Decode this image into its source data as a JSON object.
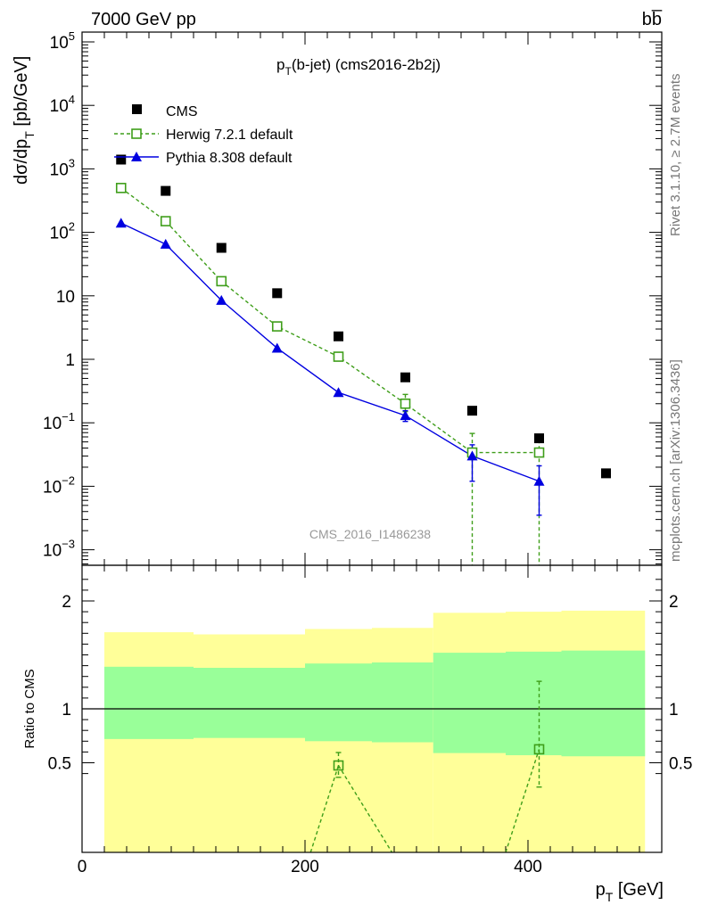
{
  "header": {
    "left": "7000 GeV pp",
    "right": "bb̅"
  },
  "side_text": {
    "rivet": "Rivet 3.1.10, ≥ 2.7M events",
    "mcplots": "mcplots.cern.ch [arXiv:1306.3436]"
  },
  "watermark": "CMS_2016_I1486238",
  "colors": {
    "cms": "#000000",
    "herwig": "#3f9e1a",
    "pythia": "#0000e0",
    "band_green": "#99ff99",
    "band_yellow": "#ffff99"
  },
  "chart_data": [
    {
      "type": "scatter",
      "title": "p_T(b-jet) (cms2016-2b2j)",
      "title_main": "p",
      "title_sub": "T",
      "title_rest": "(b-jet) (cms2016-2b2j)",
      "ylabel": "dσ/dp_T [pb/GeV]",
      "ylabel_main": "dσ/dp",
      "ylabel_sub": "T",
      "ylabel_rest": " [pb/GeV]",
      "yscale": "log",
      "ylim": [
        0.0005,
        150000
      ],
      "xlim": [
        0,
        520
      ],
      "ytick_labels": [
        {
          "v": 0.001,
          "base": "10",
          "exp": "−3"
        },
        {
          "v": 0.01,
          "base": "10",
          "exp": "−2"
        },
        {
          "v": 0.1,
          "base": "10",
          "exp": "−1"
        },
        {
          "v": 1,
          "base": "1",
          "exp": ""
        },
        {
          "v": 10,
          "base": "10",
          "exp": ""
        },
        {
          "v": 100,
          "base": "10",
          "exp": "2"
        },
        {
          "v": 1000,
          "base": "10",
          "exp": "3"
        },
        {
          "v": 10000,
          "base": "10",
          "exp": "4"
        },
        {
          "v": 100000,
          "base": "10",
          "exp": "5"
        }
      ],
      "legend_position": "top-left",
      "series": [
        {
          "name": "CMS",
          "marker": "filled-square",
          "x": [
            35,
            75,
            125,
            175,
            230,
            290,
            350,
            410,
            470
          ],
          "y": [
            1400,
            450,
            57,
            11,
            2.3,
            0.52,
            0.155,
            0.057,
            0.016
          ]
        },
        {
          "name": "Herwig 7.2.1 default",
          "marker": "open-square",
          "line": "dashed",
          "x": [
            35,
            75,
            125,
            175,
            230,
            290,
            350,
            410
          ],
          "y": [
            500,
            150,
            17,
            3.3,
            1.1,
            0.2,
            0.034,
            0.034
          ],
          "err_low": [
            0,
            0,
            0,
            0,
            0,
            0.05,
            0.0335,
            0.0335
          ],
          "err_high": [
            0,
            0,
            0,
            0,
            0,
            0.08,
            0.034,
            0.02
          ]
        },
        {
          "name": "Pythia 8.308 default",
          "marker": "filled-triangle",
          "line": "solid",
          "x": [
            35,
            75,
            125,
            175,
            230,
            290,
            350,
            410
          ],
          "y": [
            140,
            65,
            8.5,
            1.5,
            0.3,
            0.13,
            0.03,
            0.012
          ],
          "err_low": [
            0,
            0,
            0,
            0,
            0,
            0.025,
            0.018,
            0.0085
          ],
          "err_high": [
            0,
            0,
            0,
            0,
            0,
            0.025,
            0.015,
            0.009
          ]
        }
      ]
    },
    {
      "type": "scatter",
      "ylabel": "Ratio to CMS",
      "xlabel": "p_T [GeV]",
      "xlabel_main": "p",
      "xlabel_sub": "T",
      "xlabel_rest": " [GeV]",
      "xlim": [
        0,
        520
      ],
      "ylim": [
        0.35,
        2.3
      ],
      "xticks": [
        0,
        200,
        400
      ],
      "yticks": [
        0.5,
        1,
        2
      ],
      "ytick_labels": [
        "0.5",
        "1",
        "2"
      ],
      "bands": [
        {
          "x0": 20,
          "x1": 100,
          "green": [
            0.72,
            1.39
          ],
          "yellow": [
            0.35,
            1.71
          ]
        },
        {
          "x0": 100,
          "x1": 200,
          "green": [
            0.73,
            1.38
          ],
          "yellow": [
            0.35,
            1.69
          ]
        },
        {
          "x0": 200,
          "x1": 260,
          "green": [
            0.7,
            1.42
          ],
          "yellow": [
            0.35,
            1.74
          ]
        },
        {
          "x0": 260,
          "x1": 315,
          "green": [
            0.69,
            1.43
          ],
          "yellow": [
            0.35,
            1.75
          ]
        },
        {
          "x0": 315,
          "x1": 380,
          "green": [
            0.59,
            1.52
          ],
          "yellow": [
            0.35,
            1.89
          ]
        },
        {
          "x0": 380,
          "x1": 430,
          "green": [
            0.57,
            1.53
          ],
          "yellow": [
            0.35,
            1.9
          ]
        },
        {
          "x0": 430,
          "x1": 505,
          "green": [
            0.56,
            1.54
          ],
          "yellow": [
            0.35,
            1.91
          ]
        }
      ],
      "series": [
        {
          "name": "Herwig 7.2.1 default",
          "marker": "open-square",
          "line": "dashed",
          "x": [
            230,
            410
          ],
          "y": [
            0.475,
            0.625
          ],
          "err_low": [
            0.11,
            0.35
          ],
          "err_high": [
            0.12,
            0.63
          ]
        }
      ]
    }
  ]
}
